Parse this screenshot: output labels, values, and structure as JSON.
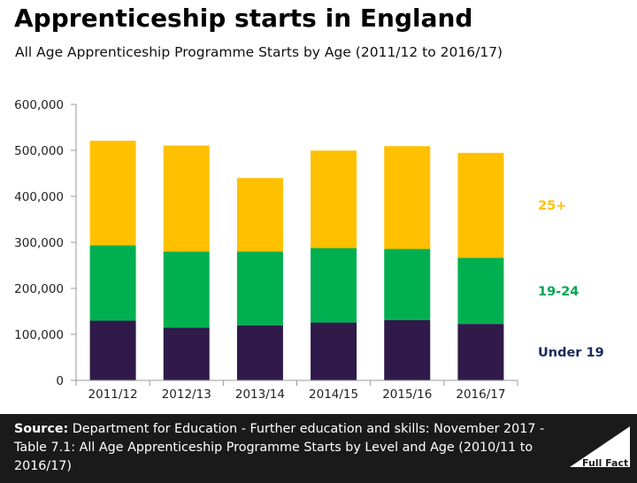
{
  "title": "Apprenticeship starts in England",
  "subtitle": "All Age Apprenticeship Programme Starts by Age (2011/12 to 2016/17)",
  "source_label": "Source:",
  "source_text": "Department for Education - Further education and skills: November 2017 - Table 7.1: All Age Apprenticeship Programme Starts by Level and Age (2010/11 to 2016/17)",
  "logo_text": "Full Fact",
  "colors": {
    "under19": "#2f1a4a",
    "age19_24": "#00b050",
    "age25plus": "#ffc000"
  },
  "chart_data": {
    "type": "bar",
    "stacked": true,
    "categories": [
      "2011/12",
      "2012/13",
      "2013/14",
      "2014/15",
      "2015/16",
      "2016/17"
    ],
    "series": [
      {
        "name": "Under 19",
        "values": [
          129900,
          114500,
          119800,
          125800,
          131400,
          122800
        ],
        "color": "#2f1a4a",
        "label_color": "#1a2a5a"
      },
      {
        "name": "19-24",
        "values": [
          163400,
          165400,
          160000,
          161700,
          154200,
          143700
        ],
        "color": "#00b050",
        "label_color": "#00a651"
      },
      {
        "name": "25+",
        "values": [
          227700,
          230600,
          160100,
          212000,
          223600,
          228100
        ],
        "color": "#ffc000",
        "label_color": "#ffc000"
      }
    ],
    "yticks": [
      "0",
      "100,000",
      "200,000",
      "300,000",
      "400,000",
      "500,000",
      "600,000"
    ],
    "ylim": [
      0,
      600000
    ],
    "grid": false,
    "legend": "right"
  }
}
